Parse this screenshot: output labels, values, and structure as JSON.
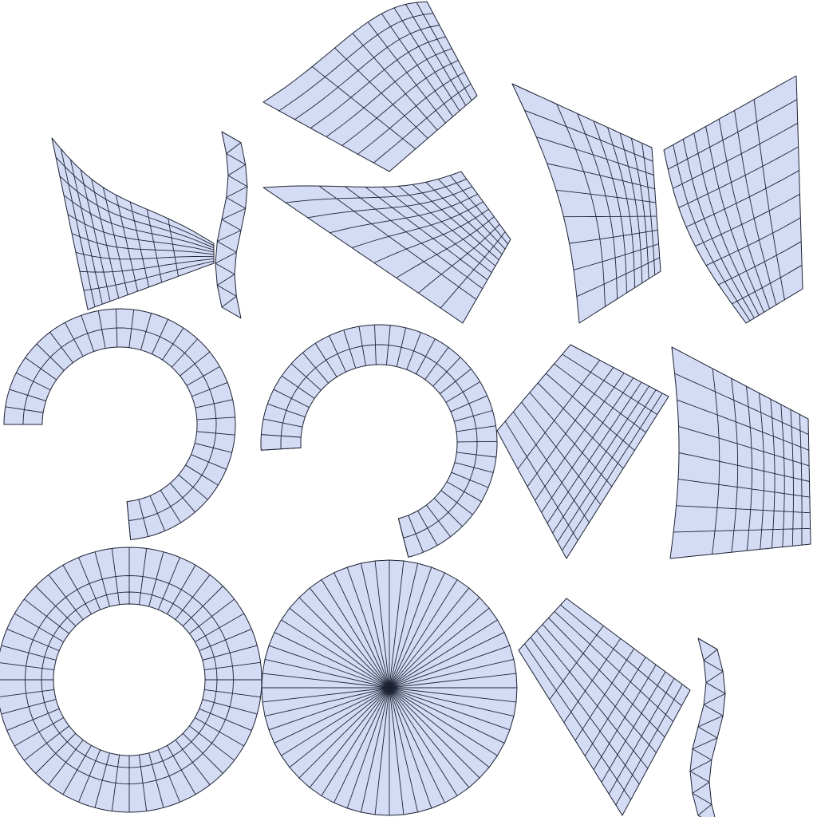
{
  "view": {
    "type": "uv-layout",
    "fill_color": "#d4dcf5",
    "edge_color": "#1c2233",
    "background": "#ffffff"
  },
  "islands": [
    {
      "name": "top-center-fan-island",
      "kind": "quad-fan"
    },
    {
      "name": "top-right-left-half-island",
      "kind": "quad-fan"
    },
    {
      "name": "top-right-right-half-island",
      "kind": "quad-fan"
    },
    {
      "name": "left-fan-island",
      "kind": "quad-fan"
    },
    {
      "name": "small-triangle-strip-upper",
      "kind": "triangle-strip"
    },
    {
      "name": "middle-fan-island",
      "kind": "quad-fan"
    },
    {
      "name": "left-hook-island",
      "kind": "ring-strip"
    },
    {
      "name": "middle-hook-island",
      "kind": "ring-strip"
    },
    {
      "name": "right-middle-fan-island",
      "kind": "quad-fan"
    },
    {
      "name": "far-right-fan-island",
      "kind": "quad-fan"
    },
    {
      "name": "ring-island",
      "kind": "ring-strip"
    },
    {
      "name": "disc-island",
      "kind": "radial-disc"
    },
    {
      "name": "bottom-right-fan-island",
      "kind": "quad-fan"
    },
    {
      "name": "small-triangle-strip-lower",
      "kind": "triangle-strip"
    }
  ]
}
